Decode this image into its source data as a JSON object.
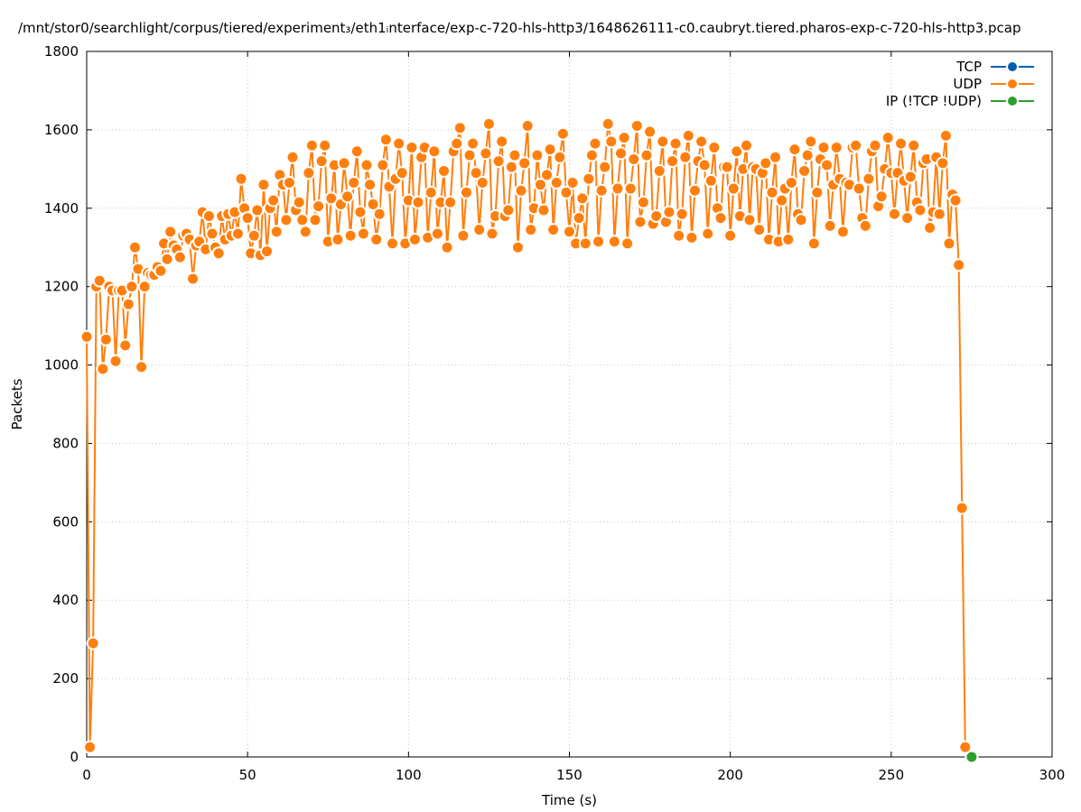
{
  "chart_data": {
    "type": "line",
    "title": "/mnt/stor0/searchlight/corpus/tiered/experiment₃/eth1ᵢnterface/exp-c-720-hls-http3/1648626111-c0.caubryt.tiered.pharos-exp-c-720-hls-http3.pcap",
    "xlabel": "Time (s)",
    "ylabel": "Packets",
    "xlim": [
      0,
      300
    ],
    "ylim": [
      0,
      1800
    ],
    "xticks": [
      0,
      50,
      100,
      150,
      200,
      250,
      300
    ],
    "yticks": [
      0,
      200,
      400,
      600,
      800,
      1000,
      1200,
      1400,
      1600,
      1800
    ],
    "grid": true,
    "legend_position": "top-right",
    "series": [
      {
        "name": "TCP",
        "color": "#0060ad",
        "points": []
      },
      {
        "name": "UDP",
        "color": "#ff7f0e",
        "points": [
          [
            0,
            1072
          ],
          [
            1,
            25
          ],
          [
            2,
            290
          ],
          [
            3,
            1200
          ],
          [
            4,
            1215
          ],
          [
            5,
            990
          ],
          [
            6,
            1065
          ],
          [
            7,
            1200
          ],
          [
            8,
            1190
          ],
          [
            9,
            1010
          ],
          [
            10,
            1190
          ],
          [
            11,
            1190
          ],
          [
            12,
            1050
          ],
          [
            13,
            1155
          ],
          [
            14,
            1200
          ],
          [
            15,
            1300
          ],
          [
            16,
            1245
          ],
          [
            17,
            995
          ],
          [
            18,
            1200
          ],
          [
            19,
            1235
          ],
          [
            20,
            1230
          ],
          [
            21,
            1230
          ],
          [
            22,
            1250
          ],
          [
            23,
            1240
          ],
          [
            24,
            1310
          ],
          [
            25,
            1270
          ],
          [
            26,
            1340
          ],
          [
            27,
            1305
          ],
          [
            28,
            1295
          ],
          [
            29,
            1275
          ],
          [
            30,
            1330
          ],
          [
            31,
            1335
          ],
          [
            32,
            1320
          ],
          [
            33,
            1220
          ],
          [
            34,
            1305
          ],
          [
            35,
            1315
          ],
          [
            36,
            1390
          ],
          [
            37,
            1295
          ],
          [
            38,
            1380
          ],
          [
            39,
            1335
          ],
          [
            40,
            1300
          ],
          [
            41,
            1285
          ],
          [
            42,
            1380
          ],
          [
            43,
            1320
          ],
          [
            44,
            1385
          ],
          [
            45,
            1330
          ],
          [
            46,
            1390
          ],
          [
            47,
            1335
          ],
          [
            48,
            1475
          ],
          [
            49,
            1400
          ],
          [
            50,
            1375
          ],
          [
            51,
            1285
          ],
          [
            52,
            1330
          ],
          [
            53,
            1395
          ],
          [
            54,
            1280
          ],
          [
            55,
            1460
          ],
          [
            56,
            1290
          ],
          [
            57,
            1400
          ],
          [
            58,
            1420
          ],
          [
            59,
            1340
          ],
          [
            60,
            1485
          ],
          [
            61,
            1460
          ],
          [
            62,
            1370
          ],
          [
            63,
            1465
          ],
          [
            64,
            1530
          ],
          [
            65,
            1395
          ],
          [
            66,
            1415
          ],
          [
            67,
            1370
          ],
          [
            68,
            1340
          ],
          [
            69,
            1490
          ],
          [
            70,
            1560
          ],
          [
            71,
            1370
          ],
          [
            72,
            1405
          ],
          [
            73,
            1520
          ],
          [
            74,
            1560
          ],
          [
            75,
            1315
          ],
          [
            76,
            1425
          ],
          [
            77,
            1510
          ],
          [
            78,
            1320
          ],
          [
            79,
            1410
          ],
          [
            80,
            1515
          ],
          [
            81,
            1430
          ],
          [
            82,
            1330
          ],
          [
            83,
            1465
          ],
          [
            84,
            1545
          ],
          [
            85,
            1390
          ],
          [
            86,
            1335
          ],
          [
            87,
            1510
          ],
          [
            88,
            1460
          ],
          [
            89,
            1410
          ],
          [
            90,
            1320
          ],
          [
            91,
            1385
          ],
          [
            92,
            1510
          ],
          [
            93,
            1575
          ],
          [
            94,
            1455
          ],
          [
            95,
            1310
          ],
          [
            96,
            1475
          ],
          [
            97,
            1565
          ],
          [
            98,
            1490
          ],
          [
            99,
            1310
          ],
          [
            100,
            1420
          ],
          [
            101,
            1555
          ],
          [
            102,
            1320
          ],
          [
            103,
            1415
          ],
          [
            104,
            1530
          ],
          [
            105,
            1555
          ],
          [
            106,
            1325
          ],
          [
            107,
            1440
          ],
          [
            108,
            1545
          ],
          [
            109,
            1335
          ],
          [
            110,
            1415
          ],
          [
            111,
            1495
          ],
          [
            112,
            1300
          ],
          [
            113,
            1415
          ],
          [
            114,
            1545
          ],
          [
            115,
            1565
          ],
          [
            116,
            1605
          ],
          [
            117,
            1330
          ],
          [
            118,
            1440
          ],
          [
            119,
            1535
          ],
          [
            120,
            1565
          ],
          [
            121,
            1490
          ],
          [
            122,
            1345
          ],
          [
            123,
            1465
          ],
          [
            124,
            1540
          ],
          [
            125,
            1615
          ],
          [
            126,
            1335
          ],
          [
            127,
            1380
          ],
          [
            128,
            1520
          ],
          [
            129,
            1570
          ],
          [
            130,
            1380
          ],
          [
            131,
            1395
          ],
          [
            132,
            1505
          ],
          [
            133,
            1535
          ],
          [
            134,
            1300
          ],
          [
            135,
            1445
          ],
          [
            136,
            1515
          ],
          [
            137,
            1610
          ],
          [
            138,
            1345
          ],
          [
            139,
            1400
          ],
          [
            140,
            1535
          ],
          [
            141,
            1460
          ],
          [
            142,
            1395
          ],
          [
            143,
            1485
          ],
          [
            144,
            1550
          ],
          [
            145,
            1345
          ],
          [
            146,
            1465
          ],
          [
            147,
            1530
          ],
          [
            148,
            1590
          ],
          [
            149,
            1440
          ],
          [
            150,
            1340
          ],
          [
            151,
            1465
          ],
          [
            152,
            1310
          ],
          [
            153,
            1375
          ],
          [
            154,
            1425
          ],
          [
            155,
            1310
          ],
          [
            156,
            1475
          ],
          [
            157,
            1535
          ],
          [
            158,
            1565
          ],
          [
            159,
            1315
          ],
          [
            160,
            1445
          ],
          [
            161,
            1505
          ],
          [
            162,
            1615
          ],
          [
            163,
            1570
          ],
          [
            164,
            1315
          ],
          [
            165,
            1450
          ],
          [
            166,
            1540
          ],
          [
            167,
            1580
          ],
          [
            168,
            1310
          ],
          [
            169,
            1450
          ],
          [
            170,
            1525
          ],
          [
            171,
            1610
          ],
          [
            172,
            1365
          ],
          [
            173,
            1415
          ],
          [
            174,
            1535
          ],
          [
            175,
            1595
          ],
          [
            176,
            1360
          ],
          [
            177,
            1380
          ],
          [
            178,
            1495
          ],
          [
            179,
            1570
          ],
          [
            180,
            1365
          ],
          [
            181,
            1390
          ],
          [
            182,
            1520
          ],
          [
            183,
            1565
          ],
          [
            184,
            1330
          ],
          [
            185,
            1385
          ],
          [
            186,
            1530
          ],
          [
            187,
            1585
          ],
          [
            188,
            1325
          ],
          [
            189,
            1445
          ],
          [
            190,
            1520
          ],
          [
            191,
            1570
          ],
          [
            192,
            1510
          ],
          [
            193,
            1335
          ],
          [
            194,
            1470
          ],
          [
            195,
            1555
          ],
          [
            196,
            1400
          ],
          [
            197,
            1375
          ],
          [
            198,
            1505
          ],
          [
            199,
            1505
          ],
          [
            200,
            1330
          ],
          [
            201,
            1450
          ],
          [
            202,
            1545
          ],
          [
            203,
            1380
          ],
          [
            204,
            1500
          ],
          [
            205,
            1560
          ],
          [
            206,
            1370
          ],
          [
            207,
            1505
          ],
          [
            208,
            1500
          ],
          [
            209,
            1345
          ],
          [
            210,
            1490
          ],
          [
            211,
            1515
          ],
          [
            212,
            1320
          ],
          [
            213,
            1440
          ],
          [
            214,
            1530
          ],
          [
            215,
            1315
          ],
          [
            216,
            1420
          ],
          [
            217,
            1450
          ],
          [
            218,
            1320
          ],
          [
            219,
            1465
          ],
          [
            220,
            1550
          ],
          [
            221,
            1385
          ],
          [
            222,
            1370
          ],
          [
            223,
            1495
          ],
          [
            224,
            1535
          ],
          [
            225,
            1570
          ],
          [
            226,
            1310
          ],
          [
            227,
            1440
          ],
          [
            228,
            1525
          ],
          [
            229,
            1555
          ],
          [
            230,
            1510
          ],
          [
            231,
            1355
          ],
          [
            232,
            1460
          ],
          [
            233,
            1555
          ],
          [
            234,
            1475
          ],
          [
            235,
            1340
          ],
          [
            236,
            1465
          ],
          [
            237,
            1460
          ],
          [
            238,
            1555
          ],
          [
            239,
            1560
          ],
          [
            240,
            1450
          ],
          [
            241,
            1375
          ],
          [
            242,
            1355
          ],
          [
            243,
            1475
          ],
          [
            244,
            1545
          ],
          [
            245,
            1560
          ],
          [
            246,
            1405
          ],
          [
            247,
            1430
          ],
          [
            248,
            1500
          ],
          [
            249,
            1580
          ],
          [
            250,
            1490
          ],
          [
            251,
            1385
          ],
          [
            252,
            1490
          ],
          [
            253,
            1565
          ],
          [
            254,
            1470
          ],
          [
            255,
            1375
          ],
          [
            256,
            1480
          ],
          [
            257,
            1560
          ],
          [
            258,
            1415
          ],
          [
            259,
            1395
          ],
          [
            260,
            1515
          ],
          [
            261,
            1525
          ],
          [
            262,
            1350
          ],
          [
            263,
            1390
          ],
          [
            264,
            1530
          ],
          [
            265,
            1385
          ],
          [
            266,
            1515
          ],
          [
            267,
            1585
          ],
          [
            268,
            1310
          ],
          [
            269,
            1435
          ],
          [
            270,
            1420
          ],
          [
            271,
            1255
          ],
          [
            272,
            635
          ],
          [
            273,
            25
          ]
        ]
      },
      {
        "name": "IP (!TCP  !UDP)",
        "color": "#2ca02c",
        "points": [
          [
            275,
            0
          ]
        ]
      }
    ]
  }
}
